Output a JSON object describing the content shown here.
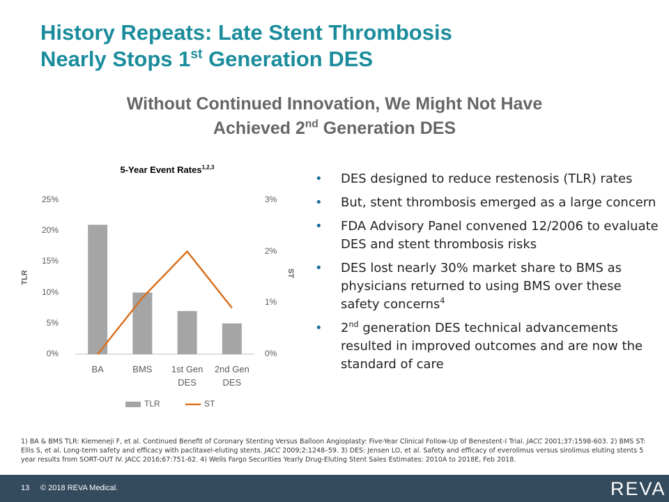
{
  "slide": {
    "title": [
      [
        {
          "text": "History Repeats:  Late Stent Thrombosis"
        }
      ],
      [
        {
          "text": "Nearly Stops 1"
        },
        {
          "sup": "st"
        },
        {
          "text": " Generation DES"
        }
      ]
    ],
    "subtitle": [
      [
        {
          "text": "Without Continued Innovation, We Might Not Have"
        }
      ],
      [
        {
          "text": "Achieved 2"
        },
        {
          "sup": "nd"
        },
        {
          "text": " Generation DES"
        }
      ]
    ],
    "bullets": [
      [
        {
          "text": "DES designed to reduce restenosis (TLR) rates"
        }
      ],
      [
        {
          "text": "But, stent thrombosis emerged as a large concern"
        }
      ],
      [
        {
          "text": "FDA Advisory Panel convened 12/2006 to evaluate DES and stent thrombosis risks"
        }
      ],
      [
        {
          "text": "DES lost nearly 30% market share to BMS as physicians returned to using BMS over these safety concerns"
        },
        {
          "sup": "4"
        }
      ],
      [
        {
          "text": "2"
        },
        {
          "sup": "nd"
        },
        {
          "text": " generation DES technical advancements resulted in improved outcomes and are now the standard of care"
        }
      ]
    ],
    "footnote": [
      {
        "text": "1) BA & BMS TLR: Kiemeneji F, et al. Continued Benefit of Coronary Stenting Versus Balloon Angioplasty: Five-Year Clinical Follow-Up of Benestent-I Trial. "
      },
      {
        "em": "JACC"
      },
      {
        "text": " 2001;37:1598-603. 2) BMS ST: Ellis S, et al. Long-term safety and efficacy with paclitaxel-eluting stents. "
      },
      {
        "em": "JACC"
      },
      {
        "text": " 2009;2:1248–59. 3) DES: Jensen LO, et al. Safety and efficacy of everolimus versus sirolimus eluting stents 5 year results from SORT-OUT IV. JACC 2016;67:751-62. 4) Wells Fargo Securities Yearly Drug-Eluting Stent Sales Estimates: 2010A to 2018E, Feb 2018."
      }
    ],
    "page_number": "13",
    "copyright": "© 2018 REVA Medical.",
    "logo": "REVA"
  },
  "chart_data": {
    "type": "bar_line",
    "title": "5-Year Event Rates",
    "title_sup": "1,2,3",
    "categories": [
      "BA",
      "BMS",
      "1st Gen DES",
      "2nd Gen DES"
    ],
    "series": [
      {
        "name": "TLR",
        "type": "bar",
        "color": "#a5a5a5",
        "values": [
          21,
          10,
          7,
          5
        ]
      },
      {
        "name": "ST",
        "type": "line",
        "axis": "y2",
        "color": "#d9711f",
        "values": [
          0,
          1.1,
          2.0,
          0.9
        ]
      }
    ],
    "ylabel": "TLR",
    "y2label": "ST",
    "ylim": [
      0,
      25
    ],
    "yticks": [
      {
        "value": 0,
        "label": "0%"
      },
      {
        "value": 5,
        "label": "5%"
      },
      {
        "value": 10,
        "label": "10%"
      },
      {
        "value": 15,
        "label": "15%"
      },
      {
        "value": 20,
        "label": "20%"
      },
      {
        "value": 25,
        "label": "25%"
      }
    ],
    "y2lim": [
      0,
      3
    ],
    "y2ticks": [
      {
        "value": 0,
        "label": "0%"
      },
      {
        "value": 1,
        "label": "1%"
      },
      {
        "value": 2,
        "label": "2%"
      },
      {
        "value": 3,
        "label": "3%"
      }
    ],
    "grid": false,
    "legend": "bottom"
  }
}
